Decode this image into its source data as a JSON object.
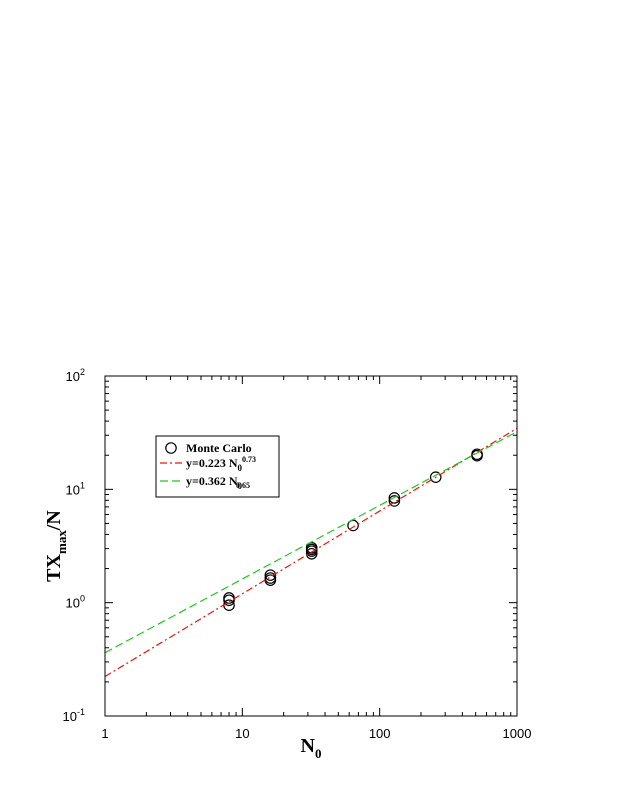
{
  "chart_data": {
    "type": "scatter",
    "xscale": "log",
    "yscale": "log",
    "xlim": [
      1,
      1000
    ],
    "ylim": [
      0.1,
      100
    ],
    "xlabel": {
      "main": "N",
      "sub": "0"
    },
    "ylabel": {
      "main": "TX",
      "sub": "max",
      "tail": "/N"
    },
    "x_ticks": [
      {
        "value": 1,
        "text": "1"
      },
      {
        "value": 10,
        "text": "10"
      },
      {
        "value": 100,
        "text": "100"
      },
      {
        "value": 1000,
        "text": "1000"
      }
    ],
    "y_ticks": [
      {
        "value": 0.1,
        "base": "10",
        "exp": "-1"
      },
      {
        "value": 1,
        "base": "10",
        "exp": "0"
      },
      {
        "value": 10,
        "base": "10",
        "exp": "1"
      },
      {
        "value": 100,
        "base": "10",
        "exp": "2"
      }
    ],
    "grid": false,
    "legend_position": "top-left",
    "series": [
      {
        "name": "Monte Carlo",
        "kind": "markers",
        "marker": "open-circle",
        "color": "#000000",
        "points": [
          [
            8,
            0.95
          ],
          [
            8,
            1.05
          ],
          [
            8,
            1.1
          ],
          [
            16,
            1.58
          ],
          [
            16,
            1.65
          ],
          [
            16,
            1.75
          ],
          [
            32,
            2.7
          ],
          [
            32,
            2.85
          ],
          [
            32,
            2.95
          ],
          [
            32,
            3.05
          ],
          [
            64,
            4.8
          ],
          [
            128,
            7.9
          ],
          [
            128,
            8.4
          ],
          [
            256,
            12.8
          ],
          [
            512,
            19.8
          ],
          [
            512,
            20.4
          ]
        ]
      },
      {
        "name": "y=0.223 N",
        "name_sub": "0",
        "name_sup": "0.73",
        "kind": "line",
        "dash": "dashdot",
        "color": "#e8150c",
        "coefficient": 0.223,
        "exponent": 0.73
      },
      {
        "name": "y=0.362 N",
        "name_sub": "0",
        "name_sup": "0.65",
        "kind": "line",
        "dash": "dashed",
        "color": "#1fc81f",
        "coefficient": 0.362,
        "exponent": 0.65
      }
    ]
  }
}
